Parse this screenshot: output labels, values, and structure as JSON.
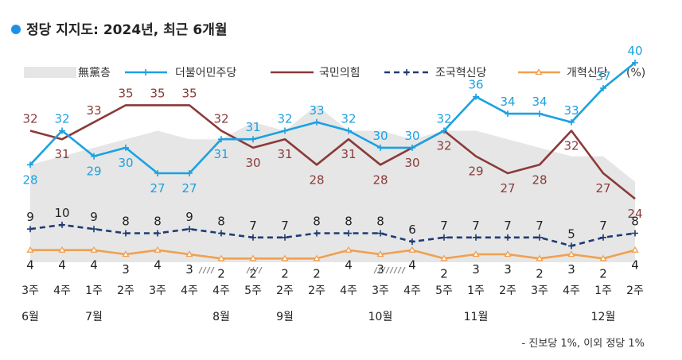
{
  "title": "정당 지지도: 2024년, 최근 6개월",
  "footnote": "- 진보당 1%, 이외 정당 1%",
  "colors": {
    "dot": "#1E90E6",
    "blue": "#1BA1E2",
    "red": "#8B3A3A",
    "navy": "#1F3B73",
    "orange": "#F0A050",
    "area": "#E6E6E6"
  },
  "chart_data": {
    "type": "line",
    "title": "정당 지지도: 2024년, 최근 6개월",
    "unit_label": "(%)",
    "x": [
      "3주",
      "4주",
      "1주",
      "2주",
      "3주",
      "4주",
      "4주",
      "5주",
      "2주",
      "2주",
      "4주",
      "3주",
      "4주",
      "5주",
      "1주",
      "2주",
      "3주",
      "4주",
      "1주",
      "2주"
    ],
    "x_break_marks": [
      5,
      6,
      10,
      11
    ],
    "months": [
      {
        "label": "6월",
        "index": 0
      },
      {
        "label": "7월",
        "index": 2
      },
      {
        "label": "8월",
        "index": 6
      },
      {
        "label": "9월",
        "index": 8
      },
      {
        "label": "10월",
        "index": 11
      },
      {
        "label": "11월",
        "index": 14
      },
      {
        "label": "12월",
        "index": 18
      }
    ],
    "series": [
      {
        "name": "無黨층",
        "style": "area",
        "values": [
          28,
          29,
          30,
          31,
          32,
          31,
          31,
          33,
          32,
          35,
          32,
          32,
          31,
          32,
          32,
          31,
          30,
          29,
          29,
          26
        ]
      },
      {
        "name": "더불어민주당",
        "style": "line-plus",
        "values": [
          28,
          32,
          29,
          30,
          27,
          27,
          31,
          31,
          32,
          33,
          32,
          30,
          30,
          32,
          36,
          34,
          34,
          33,
          37,
          40
        ]
      },
      {
        "name": "국민의힘",
        "style": "line",
        "values": [
          32,
          31,
          33,
          35,
          35,
          35,
          32,
          30,
          31,
          28,
          31,
          28,
          30,
          32,
          29,
          27,
          28,
          32,
          27,
          24
        ]
      },
      {
        "name": "조국혁신당",
        "style": "dashed-plus",
        "values": [
          9,
          10,
          9,
          8,
          8,
          9,
          8,
          7,
          7,
          8,
          8,
          8,
          6,
          7,
          7,
          7,
          7,
          5,
          7,
          8
        ]
      },
      {
        "name": "개혁신당",
        "style": "line-triangle",
        "values": [
          4,
          4,
          4,
          3,
          4,
          3,
          2,
          2,
          2,
          2,
          4,
          3,
          4,
          2,
          3,
          3,
          2,
          3,
          2,
          4
        ]
      }
    ]
  }
}
